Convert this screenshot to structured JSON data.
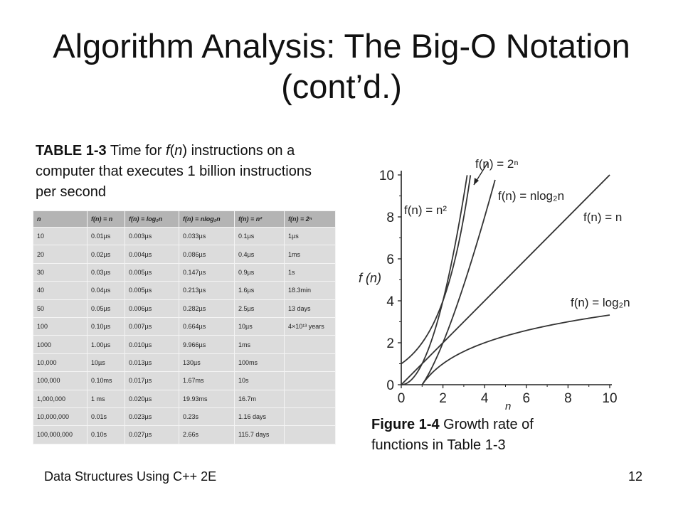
{
  "slide": {
    "title_line1": "Algorithm Analysis: The Big-O Notation",
    "title_line2": "(cont’d.)",
    "footer_left": "Data Structures Using C++ 2E",
    "page_number": "12"
  },
  "table_caption": {
    "label": "TABLE 1-3",
    "text_pre": " Time for ",
    "f": "f",
    "open": "(",
    "n": "n",
    "text_post": ") instructions on a computer that executes 1 billion instructions per second"
  },
  "table": {
    "headers": [
      "n",
      "f(n) = n",
      "f(n) = log₂n",
      "f(n) = nlog₂n",
      "f(n) = n²",
      "f(n) = 2ⁿ"
    ],
    "rows": [
      [
        "10",
        "0.01µs",
        "0.003µs",
        "0.033µs",
        "0.1µs",
        "1µs"
      ],
      [
        "20",
        "0.02µs",
        "0.004µs",
        "0.086µs",
        "0.4µs",
        "1ms"
      ],
      [
        "30",
        "0.03µs",
        "0.005µs",
        "0.147µs",
        "0.9µs",
        "1s"
      ],
      [
        "40",
        "0.04µs",
        "0.005µs",
        "0.213µs",
        "1.6µs",
        "18.3min"
      ],
      [
        "50",
        "0.05µs",
        "0.006µs",
        "0.282µs",
        "2.5µs",
        "13 days"
      ],
      [
        "100",
        "0.10µs",
        "0.007µs",
        "0.664µs",
        "10µs",
        "4×10¹³ years"
      ],
      [
        "1000",
        "1.00µs",
        "0.010µs",
        "9.966µs",
        "1ms",
        ""
      ],
      [
        "10,000",
        "10µs",
        "0.013µs",
        "130µs",
        "100ms",
        ""
      ],
      [
        "100,000",
        "0.10ms",
        "0.017µs",
        "1.67ms",
        "10s",
        ""
      ],
      [
        "1,000,000",
        "1 ms",
        "0.020µs",
        "19.93ms",
        "16.7m",
        ""
      ],
      [
        "10,000,000",
        "0.01s",
        "0.023µs",
        "0.23s",
        "1.16 days",
        ""
      ],
      [
        "100,000,000",
        "0.10s",
        "0.027µs",
        "2.66s",
        "115.7 days",
        ""
      ]
    ]
  },
  "figure_caption": {
    "label": "Figure 1-4",
    "text": " Growth rate of functions in Table 1-3"
  },
  "chart_data": {
    "type": "line",
    "xlabel": "n",
    "ylabel": "f (n)",
    "xlim": [
      0,
      10
    ],
    "ylim": [
      0,
      10
    ],
    "xticks": [
      "0",
      "2",
      "4",
      "6",
      "8",
      "10"
    ],
    "yticks": [
      "0",
      "2",
      "4",
      "6",
      "8",
      "10"
    ],
    "series": [
      {
        "name": "f(n) = 2ⁿ",
        "function": "2^n",
        "x": [
          0,
          1,
          2,
          3,
          3.32
        ],
        "y": [
          1,
          2,
          4,
          8,
          10
        ]
      },
      {
        "name": "f(n) = n²",
        "function": "n^2",
        "x": [
          0,
          1,
          2,
          3,
          3.16
        ],
        "y": [
          0,
          1,
          4,
          9,
          10
        ]
      },
      {
        "name": "f(n) = nlog₂n",
        "function": "n*log2(n)",
        "x": [
          1,
          2,
          3,
          4,
          4.5
        ],
        "y": [
          0,
          2,
          4.75,
          8,
          9.8
        ]
      },
      {
        "name": "f(n) = n",
        "function": "n",
        "x": [
          0,
          10
        ],
        "y": [
          0,
          10
        ]
      },
      {
        "name": "f(n) = log₂n",
        "function": "log2(n)",
        "x": [
          1,
          2,
          4,
          6,
          8,
          10
        ],
        "y": [
          0,
          1,
          2,
          2.58,
          3,
          3.32
        ]
      }
    ],
    "labels": {
      "pow2": "f(n) = 2ⁿ",
      "sq": "f(n) = n²",
      "nlogn": "f(n) = nlog₂n",
      "lin": "f(n) = n",
      "log": "f(n) = log₂n"
    }
  }
}
